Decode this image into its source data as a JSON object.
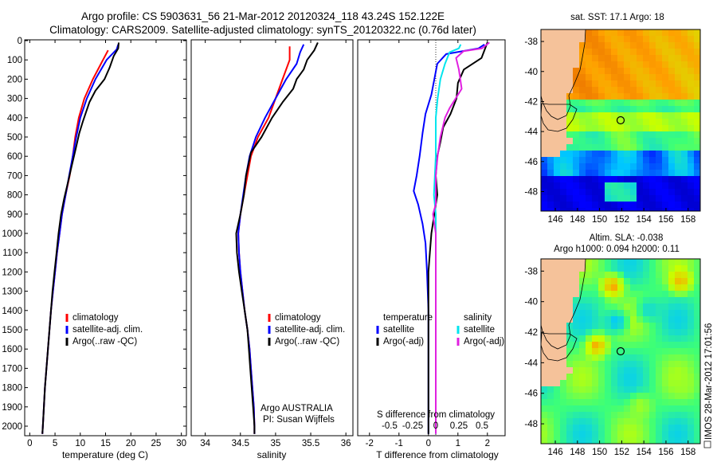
{
  "title_line1": "Argo profile: CS 5903631_56 21-Mar-2012 20120324_118 43.24S 152.122E",
  "title_line2": "Climatology: CARS2009. Satellite-adjusted climatology: synTS_20120322.nc (0.76d later)",
  "y_ticks": [
    "0",
    "100",
    "200",
    "300",
    "400",
    "500",
    "600",
    "700",
    "800",
    "900",
    "1000",
    "1100",
    "1200",
    "1300",
    "1400",
    "1500",
    "1600",
    "1700",
    "1800",
    "1900",
    "2000"
  ],
  "credit": "IMOS 28-Mar-2012 17:01:56",
  "colors": {
    "climatology": "#ff0000",
    "satellite": "#0000ff",
    "argo": "#000000",
    "sal_sat": "#00e5ee",
    "sal_argo": "#e020e0"
  },
  "chart_data": [
    {
      "type": "line",
      "name": "temperature-panel",
      "xlabel": "temperature (deg C)",
      "xlim": [
        -1,
        31
      ],
      "ylim": [
        2050,
        0
      ],
      "x_ticks": [
        "0",
        "5",
        "10",
        "15",
        "20",
        "25",
        "30"
      ],
      "legend": [
        "climatology",
        "satellite-adj. clim.",
        "Argo(..raw -QC)"
      ],
      "series": [
        {
          "key": "climatology",
          "points": [
            [
              15.5,
              50
            ],
            [
              14.5,
              100
            ],
            [
              12.5,
              200
            ],
            [
              10.8,
              300
            ],
            [
              9.7,
              400
            ],
            [
              9,
              500
            ],
            [
              8.5,
              600
            ],
            [
              7.9,
              700
            ],
            [
              7.1,
              800
            ],
            [
              6.4,
              900
            ],
            [
              5.9,
              1000
            ],
            [
              5.4,
              1100
            ],
            [
              5.0,
              1200
            ],
            [
              4.6,
              1300
            ],
            [
              4.2,
              1400
            ],
            [
              3.9,
              1500
            ],
            [
              3.6,
              1600
            ],
            [
              3.3,
              1700
            ],
            [
              3.0,
              1800
            ],
            [
              2.8,
              1900
            ],
            [
              2.6,
              2000
            ],
            [
              2.5,
              2040
            ]
          ]
        },
        {
          "key": "satellite",
          "points": [
            [
              17.5,
              20
            ],
            [
              17.2,
              45
            ],
            [
              15.2,
              100
            ],
            [
              13,
              200
            ],
            [
              11.3,
              300
            ],
            [
              10,
              400
            ],
            [
              9.2,
              500
            ],
            [
              8.5,
              600
            ],
            [
              7.8,
              700
            ],
            [
              7.1,
              800
            ],
            [
              6.4,
              900
            ],
            [
              5.9,
              1000
            ],
            [
              5.4,
              1100
            ],
            [
              5.0,
              1200
            ],
            [
              4.6,
              1300
            ],
            [
              4.2,
              1400
            ],
            [
              3.9,
              1500
            ],
            [
              3.6,
              1600
            ],
            [
              3.3,
              1700
            ],
            [
              3.0,
              1800
            ],
            [
              2.8,
              1900
            ],
            [
              2.6,
              2000
            ],
            [
              2.5,
              2040
            ]
          ]
        },
        {
          "key": "argo",
          "points": [
            [
              17.6,
              10
            ],
            [
              17.5,
              40
            ],
            [
              16.6,
              80
            ],
            [
              15.8,
              140
            ],
            [
              14.8,
              200
            ],
            [
              13,
              260
            ],
            [
              11.8,
              320
            ],
            [
              10.5,
              420
            ],
            [
              9.8,
              480
            ],
            [
              9.1,
              560
            ],
            [
              8.3,
              650
            ],
            [
              7.6,
              730
            ],
            [
              6.8,
              820
            ],
            [
              6.2,
              900
            ],
            [
              5.7,
              1000
            ],
            [
              5.3,
              1100
            ],
            [
              4.9,
              1200
            ],
            [
              4.5,
              1300
            ],
            [
              4.2,
              1400
            ],
            [
              3.9,
              1500
            ],
            [
              3.6,
              1600
            ],
            [
              3.3,
              1700
            ],
            [
              3.0,
              1800
            ],
            [
              2.8,
              1900
            ],
            [
              2.6,
              2000
            ],
            [
              2.5,
              2040
            ]
          ]
        }
      ]
    },
    {
      "type": "line",
      "name": "salinity-panel",
      "xlabel": "salinity",
      "xlim": [
        33.8,
        36.1
      ],
      "ylim": [
        2050,
        0
      ],
      "x_ticks": [
        "34",
        "34.5",
        "35",
        "35.5",
        "36"
      ],
      "legend": [
        "climatology",
        "satellite-adj. clim.",
        "Argo(..raw -QC)"
      ],
      "annotation": [
        "Argo AUSTRALIA",
        "PI: Susan Wijffels"
      ],
      "series": [
        {
          "key": "climatology",
          "points": [
            [
              35.2,
              30
            ],
            [
              35.2,
              100
            ],
            [
              35.1,
              200
            ],
            [
              35.0,
              300
            ],
            [
              34.9,
              400
            ],
            [
              34.75,
              500
            ],
            [
              34.65,
              600
            ],
            [
              34.6,
              700
            ],
            [
              34.55,
              800
            ],
            [
              34.5,
              900
            ],
            [
              34.47,
              1000
            ],
            [
              34.48,
              1100
            ],
            [
              34.5,
              1200
            ],
            [
              34.53,
              1300
            ],
            [
              34.56,
              1400
            ],
            [
              34.6,
              1500
            ],
            [
              34.63,
              1600
            ],
            [
              34.65,
              1700
            ],
            [
              34.67,
              1800
            ],
            [
              34.69,
              1900
            ],
            [
              34.7,
              2000
            ],
            [
              34.7,
              2040
            ]
          ]
        },
        {
          "key": "satellite",
          "points": [
            [
              35.4,
              20
            ],
            [
              35.35,
              60
            ],
            [
              35.3,
              120
            ],
            [
              35.15,
              200
            ],
            [
              35.0,
              300
            ],
            [
              34.85,
              400
            ],
            [
              34.72,
              500
            ],
            [
              34.63,
              600
            ],
            [
              34.58,
              700
            ],
            [
              34.54,
              800
            ],
            [
              34.5,
              900
            ],
            [
              34.47,
              1000
            ],
            [
              34.48,
              1100
            ],
            [
              34.5,
              1200
            ],
            [
              34.53,
              1300
            ],
            [
              34.56,
              1400
            ],
            [
              34.6,
              1500
            ],
            [
              34.63,
              1600
            ],
            [
              34.65,
              1700
            ],
            [
              34.67,
              1800
            ],
            [
              34.69,
              1900
            ],
            [
              34.7,
              2000
            ],
            [
              34.7,
              2040
            ]
          ]
        },
        {
          "key": "argo",
          "points": [
            [
              35.6,
              10
            ],
            [
              35.55,
              50
            ],
            [
              35.45,
              100
            ],
            [
              35.4,
              150
            ],
            [
              35.3,
              200
            ],
            [
              35.25,
              250
            ],
            [
              35.1,
              320
            ],
            [
              34.95,
              400
            ],
            [
              34.8,
              500
            ],
            [
              34.65,
              580
            ],
            [
              34.58,
              700
            ],
            [
              34.55,
              800
            ],
            [
              34.5,
              900
            ],
            [
              34.44,
              1000
            ],
            [
              34.45,
              1100
            ],
            [
              34.48,
              1200
            ],
            [
              34.52,
              1300
            ],
            [
              34.56,
              1400
            ],
            [
              34.6,
              1500
            ],
            [
              34.62,
              1600
            ],
            [
              34.64,
              1700
            ],
            [
              34.66,
              1800
            ],
            [
              34.68,
              1900
            ],
            [
              34.7,
              2000
            ],
            [
              34.7,
              2040
            ]
          ]
        }
      ]
    },
    {
      "type": "line",
      "name": "difference-panel",
      "xlabel": "T difference from climatology",
      "x2label": "S difference from climatology",
      "xlim": [
        -2.4,
        2.6
      ],
      "ylim": [
        2050,
        0
      ],
      "x_ticks": [
        "-2",
        "-1",
        "0",
        "1",
        "2"
      ],
      "x2_ticks": [
        "-0.5",
        "-0.25",
        "0",
        "0.25",
        "0.5"
      ],
      "legend_t": [
        "temperature",
        "satellite",
        "Argo(-adj)"
      ],
      "legend_s": [
        "salinity",
        "satellite",
        "Argo(-adj)"
      ],
      "series": [
        {
          "key": "t_satellite",
          "points": [
            [
              1.9,
              20
            ],
            [
              1.7,
              40
            ],
            [
              0.6,
              70
            ],
            [
              0.3,
              120
            ],
            [
              0.2,
              200
            ],
            [
              0.1,
              280
            ],
            [
              -0.1,
              380
            ],
            [
              -0.2,
              480
            ],
            [
              -0.3,
              600
            ],
            [
              -0.4,
              700
            ],
            [
              -0.5,
              780
            ],
            [
              -0.35,
              850
            ],
            [
              -0.2,
              950
            ],
            [
              -0.1,
              1050
            ],
            [
              -0.05,
              1200
            ],
            [
              0,
              1400
            ],
            [
              0,
              1700
            ],
            [
              0,
              2040
            ]
          ]
        },
        {
          "key": "t_argo",
          "points": [
            [
              2.0,
              10
            ],
            [
              1.9,
              50
            ],
            [
              1.8,
              90
            ],
            [
              1.2,
              150
            ],
            [
              1.0,
              220
            ],
            [
              0.95,
              300
            ],
            [
              0.75,
              380
            ],
            [
              0.5,
              450
            ],
            [
              0.4,
              530
            ],
            [
              0.3,
              600
            ],
            [
              0.25,
              700
            ],
            [
              0.3,
              800
            ],
            [
              0.2,
              900
            ],
            [
              0.1,
              1000
            ],
            [
              0.05,
              1100
            ],
            [
              0,
              1200
            ],
            [
              0,
              1400
            ],
            [
              0,
              1700
            ],
            [
              0,
              2040
            ]
          ]
        },
        {
          "key": "s_satellite",
          "points": [
            [
              0.27,
              20
            ],
            [
              0.25,
              40
            ],
            [
              0.15,
              60
            ],
            [
              0.1,
              120
            ],
            [
              0.05,
              200
            ],
            [
              0.02,
              300
            ],
            [
              0,
              400
            ],
            [
              0,
              600
            ],
            [
              -0.02,
              800
            ],
            [
              0,
              900
            ],
            [
              0,
              1200
            ],
            [
              0,
              2040
            ]
          ]
        },
        {
          "key": "s_argo",
          "points": [
            [
              0.58,
              10
            ],
            [
              0.5,
              40
            ],
            [
              0.3,
              55
            ],
            [
              0.22,
              90
            ],
            [
              0.25,
              150
            ],
            [
              0.28,
              250
            ],
            [
              0.15,
              350
            ],
            [
              0.1,
              400
            ],
            [
              0.05,
              500
            ],
            [
              0.02,
              600
            ],
            [
              0,
              700
            ],
            [
              0,
              850
            ],
            [
              -0.03,
              900
            ],
            [
              0,
              1000
            ],
            [
              0,
              1200
            ],
            [
              0,
              2040
            ]
          ]
        }
      ]
    },
    {
      "type": "heatmap",
      "name": "sst-map",
      "title": "sat. SST: 17.1  Argo: 18",
      "x_ticks": [
        "146",
        "148",
        "150",
        "152",
        "154",
        "156",
        "158"
      ],
      "y_ticks": [
        "-38",
        "-40",
        "-42",
        "-44",
        "-46",
        "-48"
      ],
      "xlim": [
        144.7,
        159.1
      ],
      "ylim": [
        -49.3,
        -37.2
      ],
      "marker": [
        152.12,
        -43.24
      ]
    },
    {
      "type": "heatmap",
      "name": "sla-map",
      "title_line1": "Altim. SLA: -0.038",
      "title_line2": "Argo h1000: 0.094 h2000: 0.11",
      "x_ticks": [
        "146",
        "148",
        "150",
        "152",
        "154",
        "156",
        "158"
      ],
      "y_ticks": [
        "-38",
        "-40",
        "-42",
        "-44",
        "-46",
        "-48"
      ],
      "xlim": [
        144.7,
        159.1
      ],
      "ylim": [
        -49.3,
        -37.2
      ],
      "marker": [
        152.12,
        -43.24
      ]
    }
  ]
}
